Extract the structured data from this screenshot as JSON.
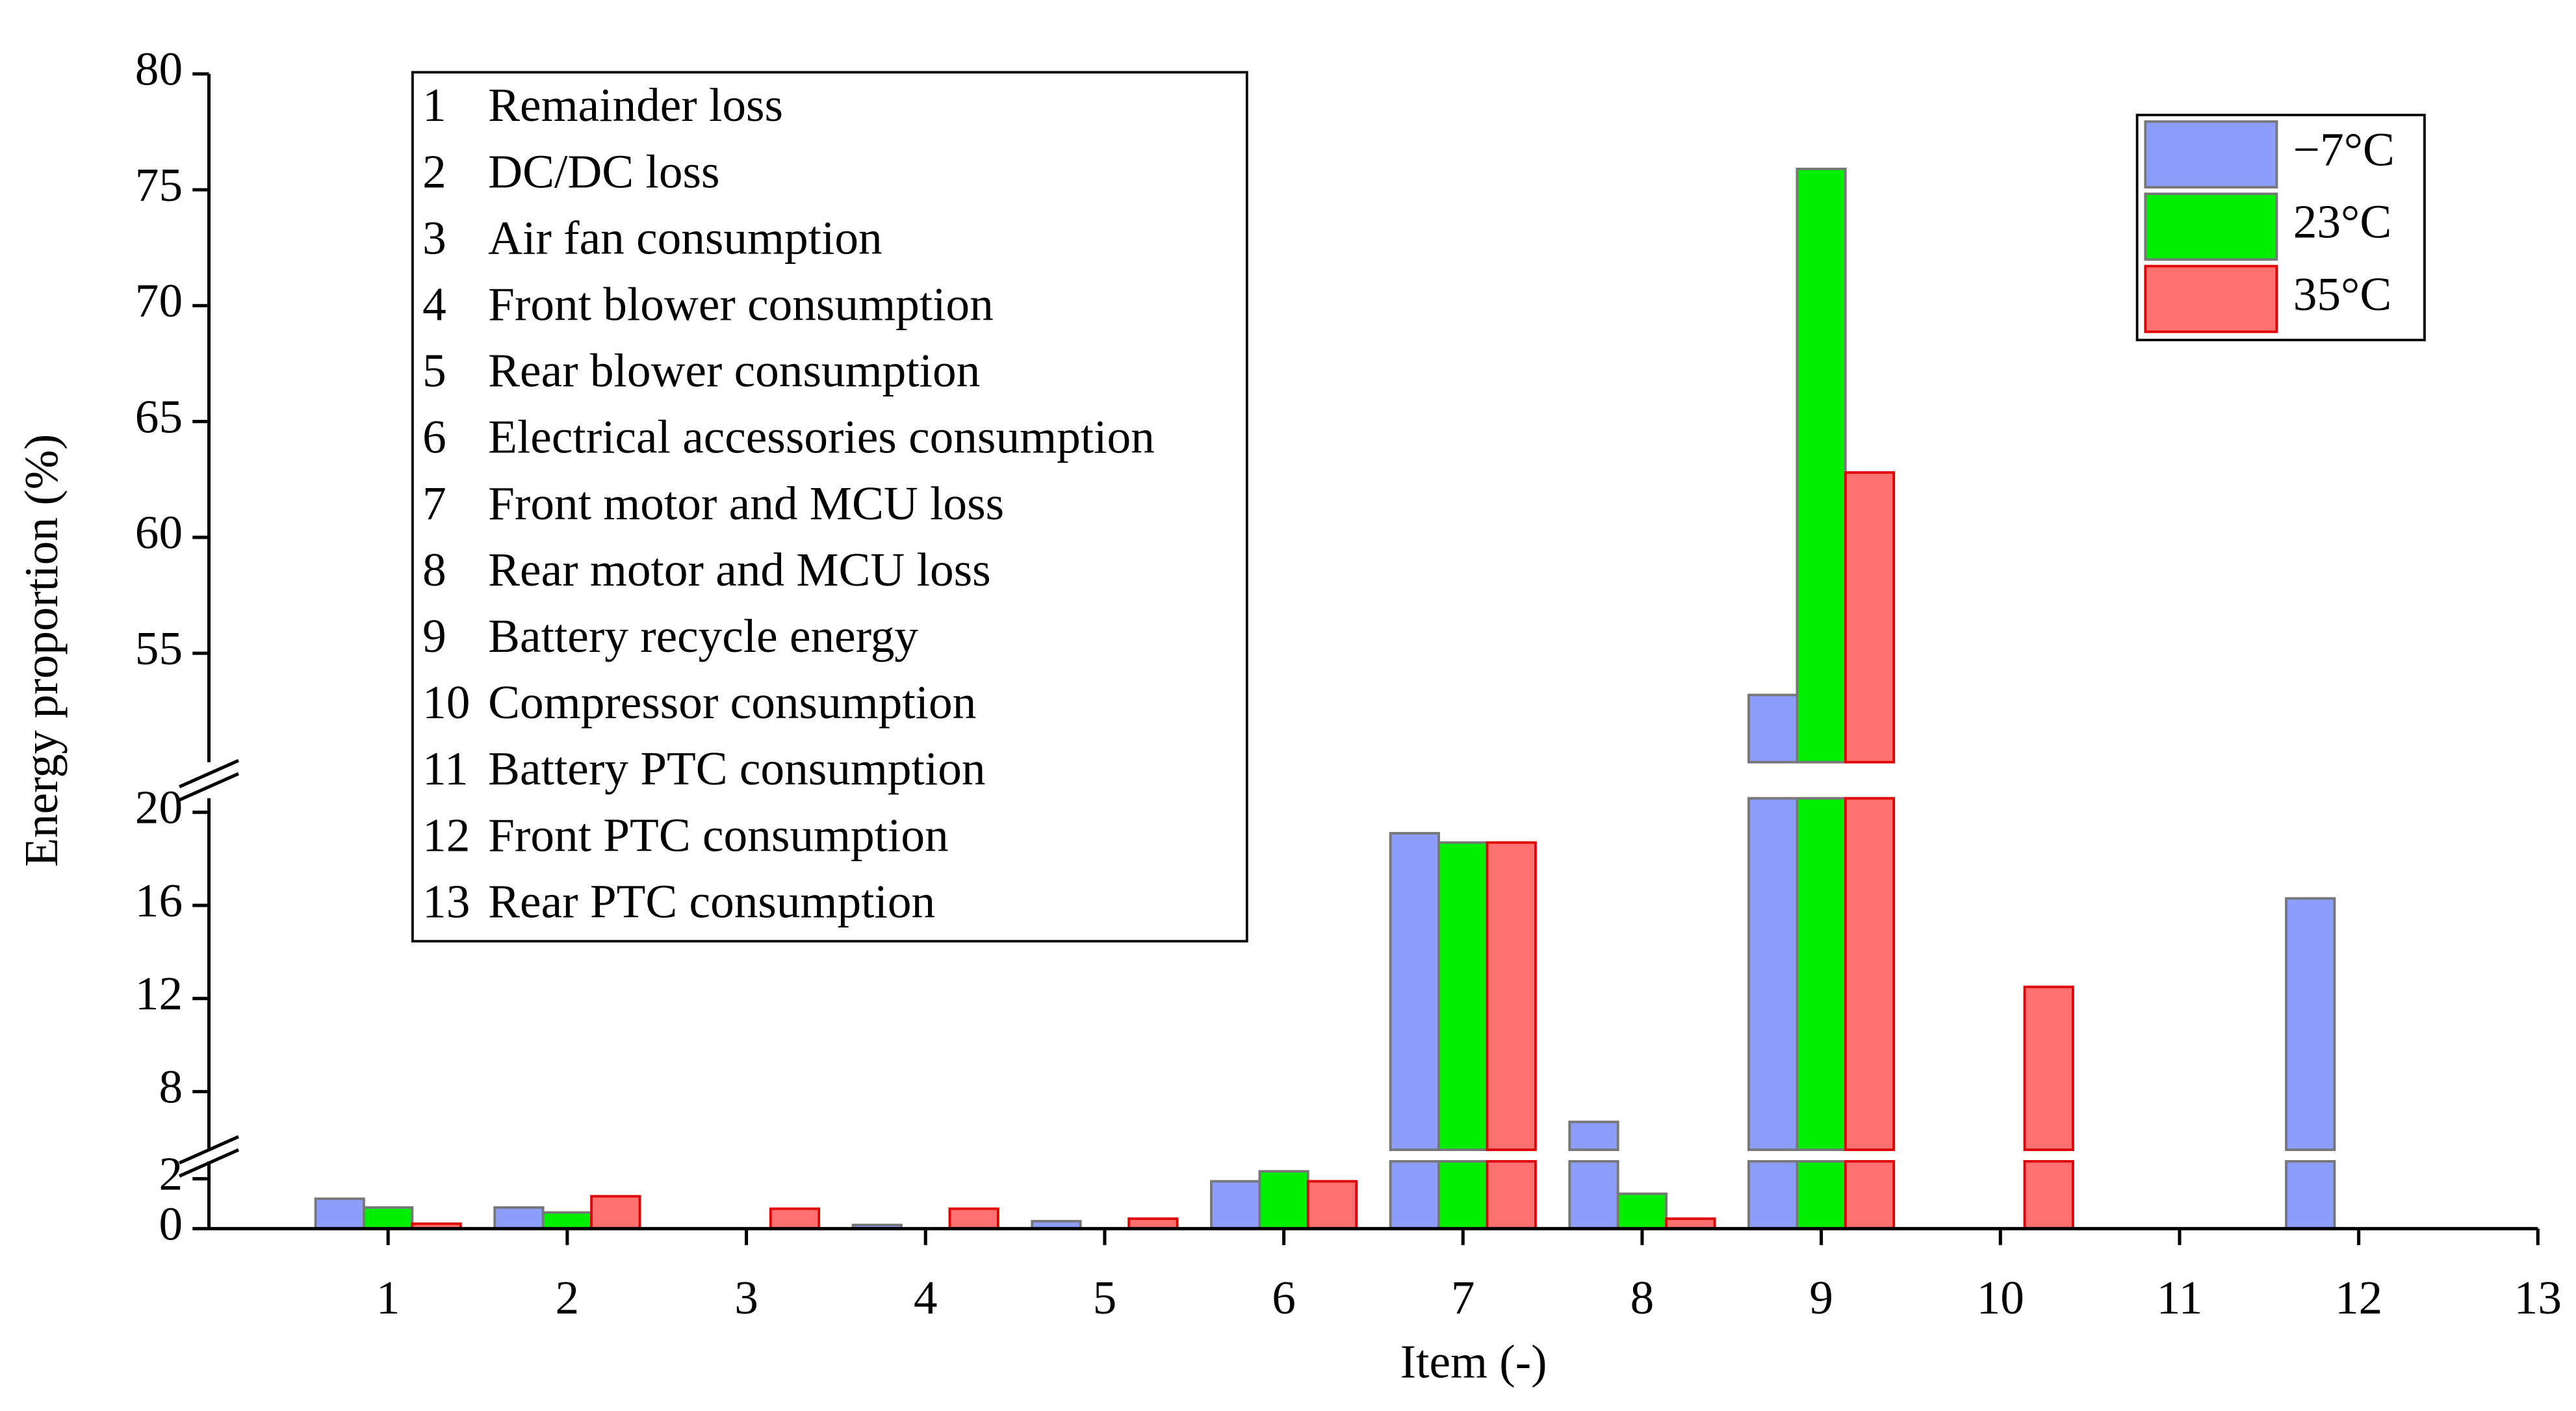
{
  "chart_data": {
    "type": "bar",
    "x_label": "Item (-)",
    "y_label": "Energy proportion (%)",
    "xlim": [
      0,
      13
    ],
    "xticks": [
      1,
      2,
      3,
      4,
      5,
      6,
      7,
      8,
      9,
      10,
      11,
      12,
      13
    ],
    "y_segments": [
      {
        "ylim": [
          0,
          2.7
        ],
        "yticks": [
          0,
          2
        ]
      },
      {
        "ylim": [
          5.5,
          20.6
        ],
        "yticks": [
          8,
          12,
          16,
          20
        ]
      },
      {
        "ylim": [
          50.3,
          80
        ],
        "yticks": [
          55,
          60,
          65,
          70,
          75,
          80
        ]
      }
    ],
    "series": [
      {
        "name": "−7°C",
        "color": "#8c9dfb",
        "stroke": "#777777",
        "values": [
          1.2,
          0.85,
          0,
          0.15,
          0.3,
          1.9,
          19.1,
          6.7,
          53.2,
          0,
          0,
          16.3,
          0
        ]
      },
      {
        "name": "23°C",
        "color": "#00ee00",
        "stroke": "#777777",
        "values": [
          0.85,
          0.65,
          0,
          0,
          0,
          2.3,
          18.7,
          1.4,
          75.9,
          0,
          0,
          0,
          0
        ]
      },
      {
        "name": "35°C",
        "color": "#ff7070",
        "stroke": "#e00000",
        "values": [
          0.2,
          1.3,
          0.8,
          0.8,
          0.4,
          1.9,
          18.7,
          0.4,
          62.8,
          12.5,
          0,
          0,
          0
        ]
      }
    ],
    "item_key": [
      {
        "id": "1",
        "label": "Remainder loss"
      },
      {
        "id": "2",
        "label": "DC/DC loss"
      },
      {
        "id": "3",
        "label": "Air fan consumption"
      },
      {
        "id": "4",
        "label": "Front blower consumption"
      },
      {
        "id": "5",
        "label": "Rear blower consumption"
      },
      {
        "id": "6",
        "label": "Electrical accessories  consumption"
      },
      {
        "id": "7",
        "label": "Front motor and MCU loss"
      },
      {
        "id": "8",
        "label": "Rear motor and MCU loss"
      },
      {
        "id": "9",
        "label": "Battery recycle energy"
      },
      {
        "id": "10",
        "label": "Compressor consumption"
      },
      {
        "id": "11",
        "label": "Battery PTC consumption"
      },
      {
        "id": "12",
        "label": "Front PTC consumption"
      },
      {
        "id": "13",
        "label": "Rear PTC consumption"
      }
    ],
    "legend": "top-right"
  }
}
